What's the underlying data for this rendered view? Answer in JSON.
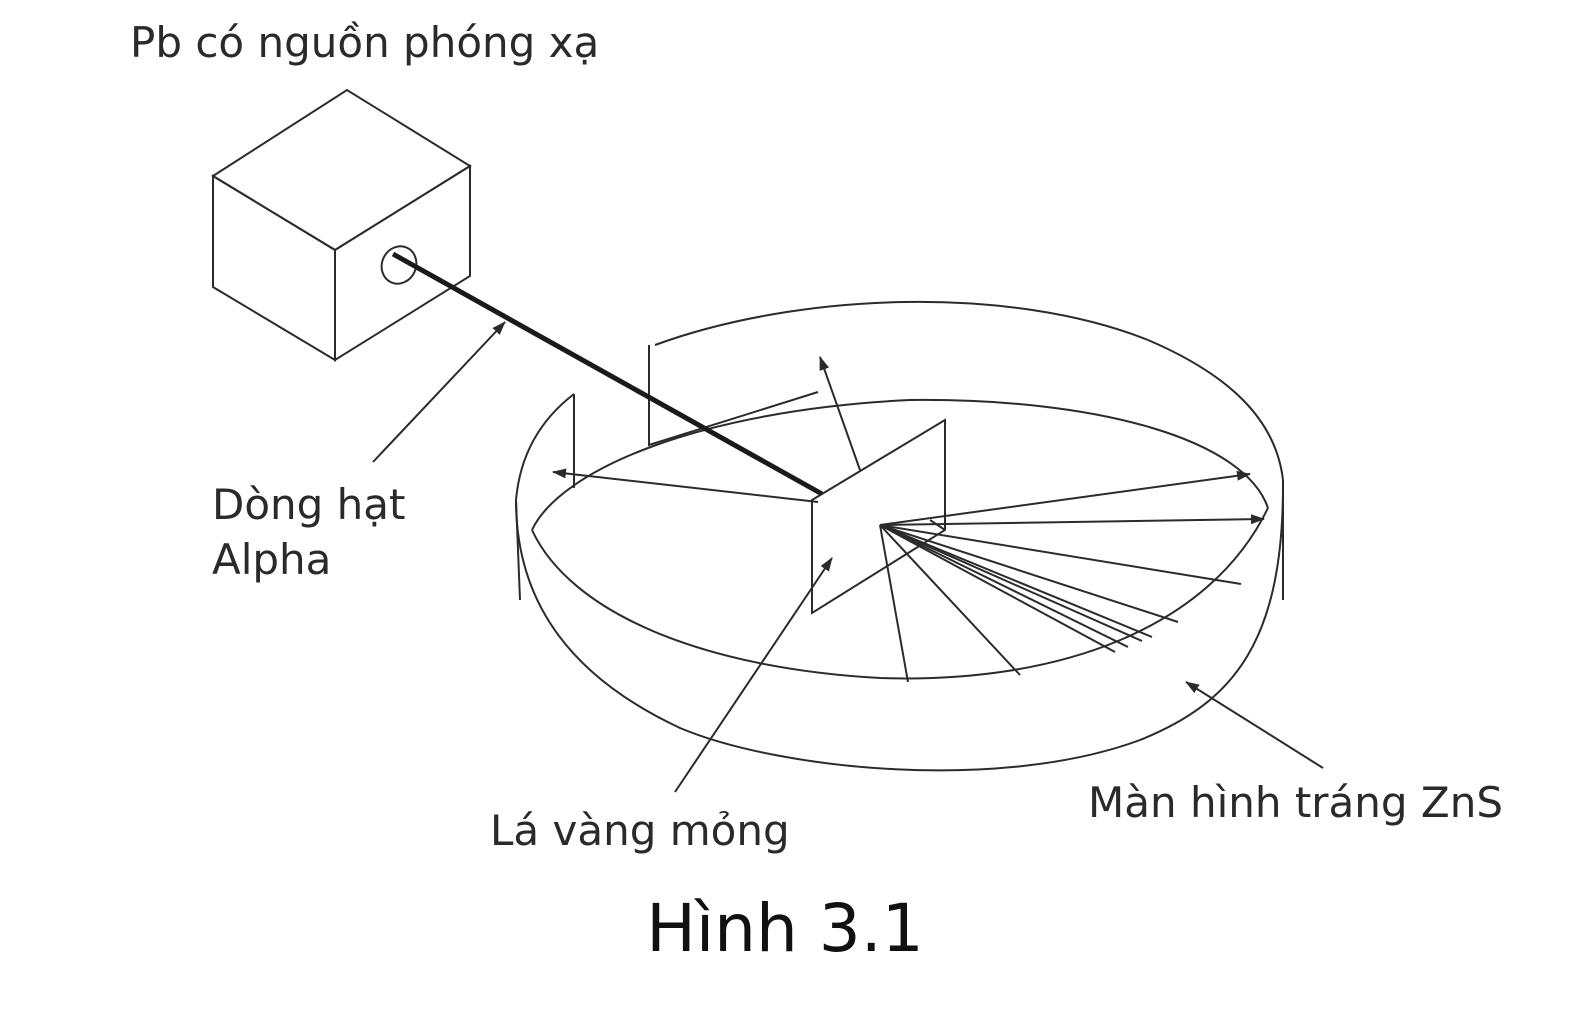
{
  "labels": {
    "source": "Pb có nguồn phóng xạ",
    "alpha_line1": "Dòng hạt",
    "alpha_line2": "Alpha",
    "foil": "Lá vàng mỏng",
    "screen": "Màn hình tráng ZnS"
  },
  "caption": "Hình 3.1",
  "colors": {
    "line": "#2b2b2b",
    "beam": "#1a1a1a",
    "background": "#ffffff"
  }
}
